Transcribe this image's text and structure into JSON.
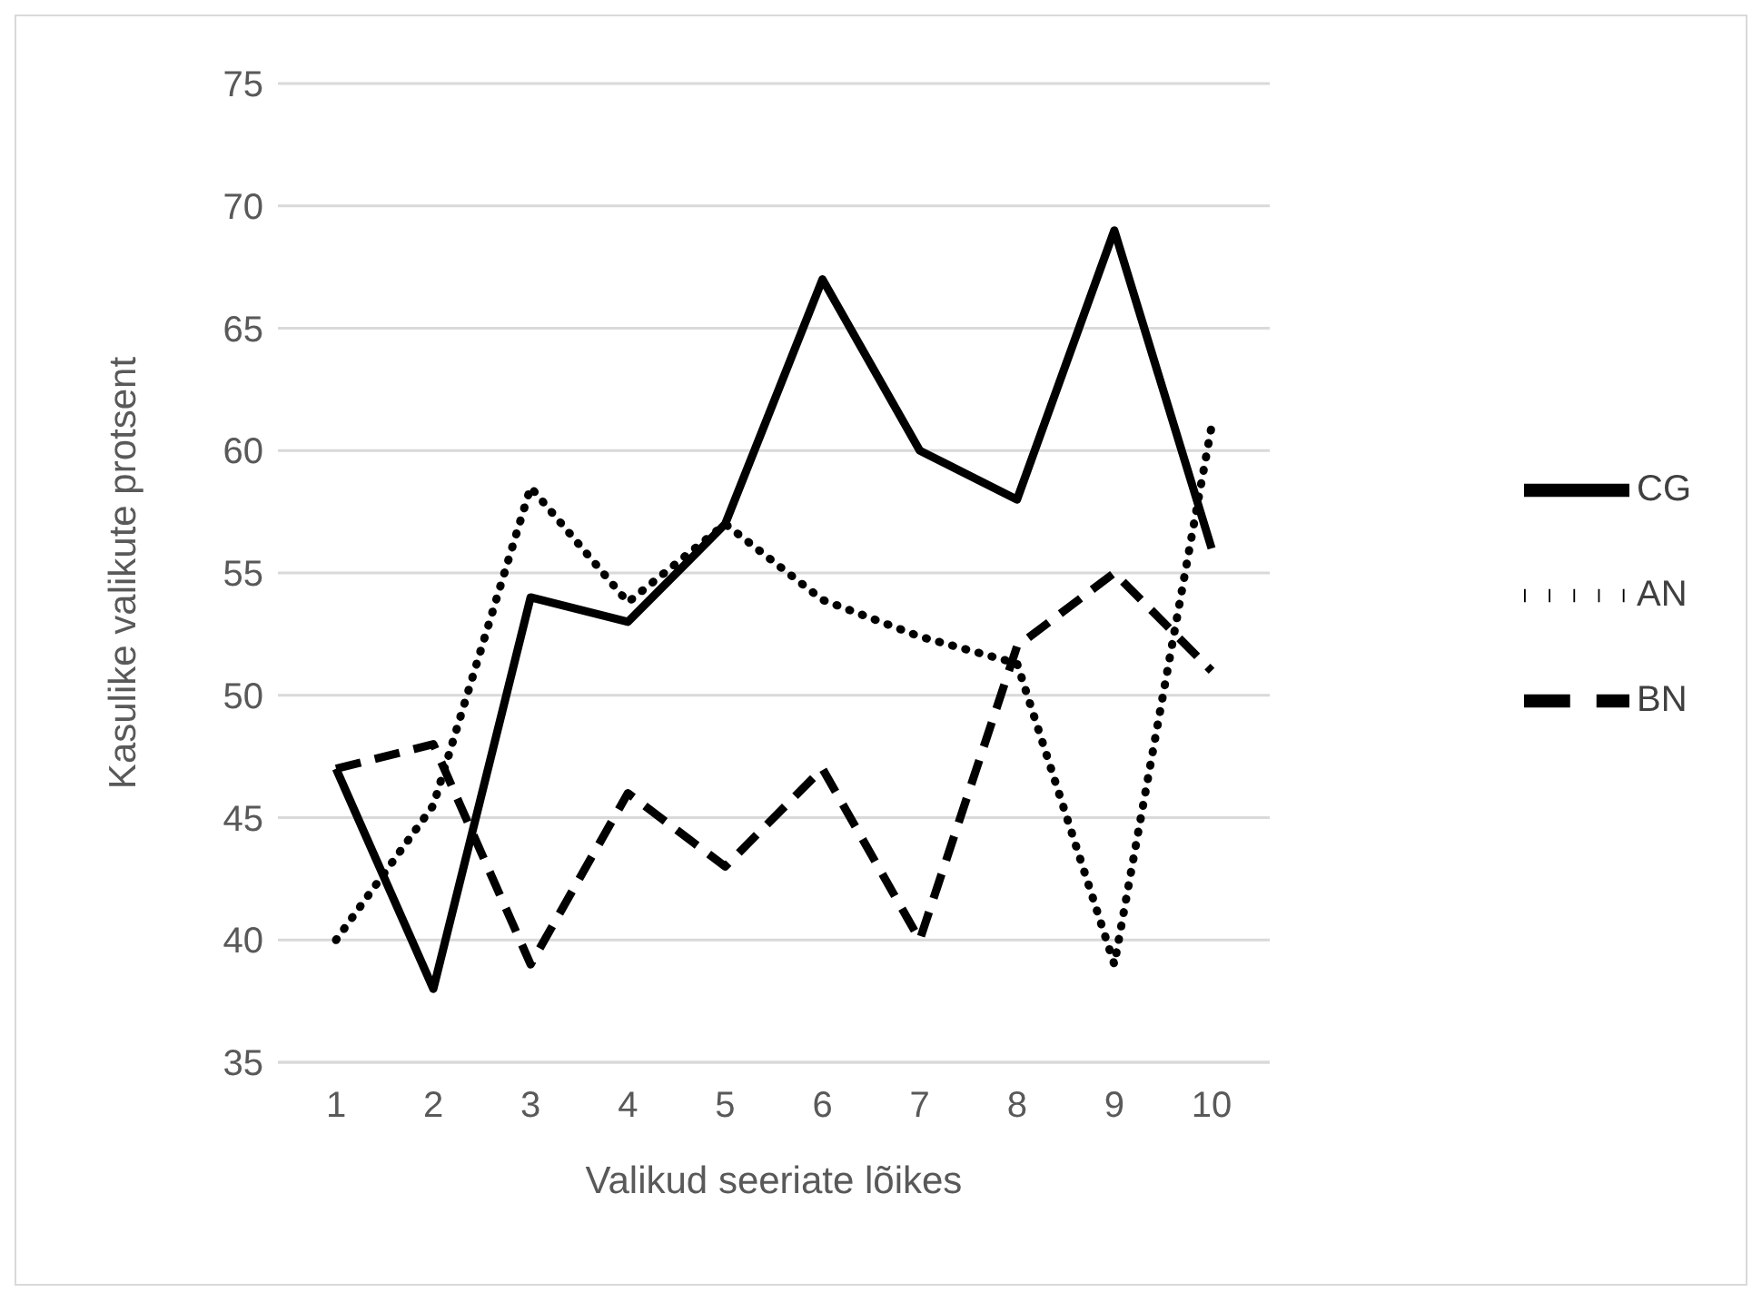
{
  "chart_data": {
    "type": "line",
    "xlabel": "Valikud seeriate lõikes",
    "ylabel": "Kasulike valikute protsent",
    "categories": [
      "1",
      "2",
      "3",
      "4",
      "5",
      "6",
      "7",
      "8",
      "9",
      "10"
    ],
    "series": [
      {
        "name": "CG",
        "color": "#000000",
        "line_style": "solid",
        "values": [
          47,
          38,
          54,
          53,
          57,
          67,
          60,
          58,
          69,
          56
        ]
      },
      {
        "name": "AN",
        "color": "#000000",
        "line_style": "dotted",
        "values": [
          40,
          45.5,
          58.5,
          53.8,
          57,
          53.9,
          52.4,
          51.3,
          39,
          61
        ]
      },
      {
        "name": "BN",
        "color": "#000000",
        "line_style": "dashed",
        "values": [
          47,
          48,
          39,
          46,
          43,
          47,
          40,
          52,
          55,
          51
        ]
      }
    ],
    "ylim": [
      35,
      75
    ],
    "yticks": [
      35,
      40,
      45,
      50,
      55,
      60,
      65,
      70,
      75
    ],
    "grid": "y",
    "legend": "right",
    "marker": "none"
  }
}
